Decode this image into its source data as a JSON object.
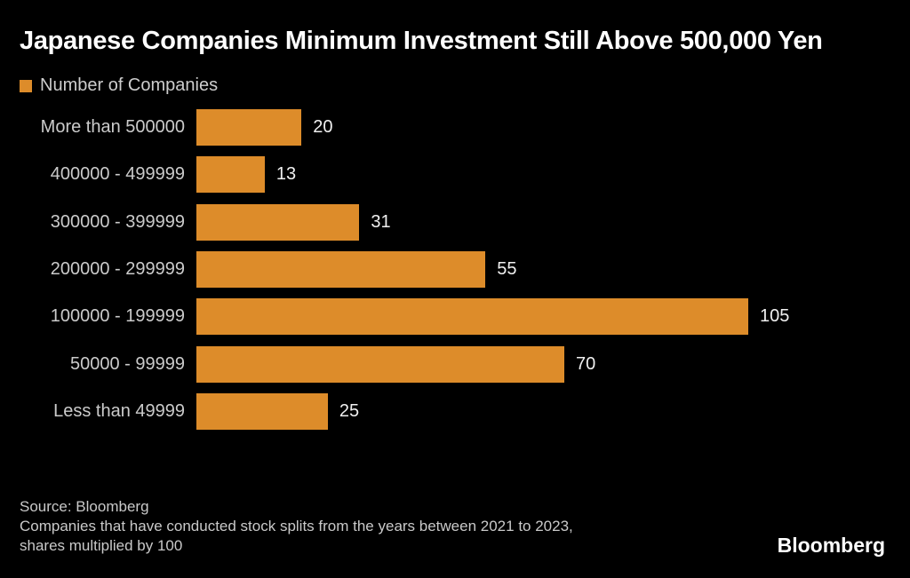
{
  "title": "Japanese Companies Minimum Investment Still Above 500,000 Yen",
  "legend": {
    "label": "Number of Companies"
  },
  "chart_data": {
    "type": "bar",
    "orientation": "horizontal",
    "title": "Japanese Companies Minimum Investment Still Above 500,000 Yen",
    "series_name": "Number of Companies",
    "categories": [
      "More than 500000",
      "400000 - 499999",
      "300000 - 399999",
      "200000 - 299999",
      "100000 - 199999",
      "50000 - 99999",
      "Less than 49999"
    ],
    "values": [
      20,
      13,
      31,
      55,
      105,
      70,
      25
    ],
    "xlim": [
      0,
      105
    ],
    "grid": false,
    "value_labels_shown": true,
    "legend_position": "top-left"
  },
  "footer": {
    "source": "Source: Bloomberg",
    "note_lines": [
      "Companies that have conducted stock splits from the years between 2021 to 2023,",
      "shares multiplied by 100"
    ],
    "brand": "Bloomberg"
  },
  "colors": {
    "background": "#000000",
    "bar": "#dd8c2a",
    "title_text": "#ffffff",
    "category_text": "#cbcbcb",
    "value_text": "#f0f0f0",
    "footer_text": "#c9c9c9"
  }
}
